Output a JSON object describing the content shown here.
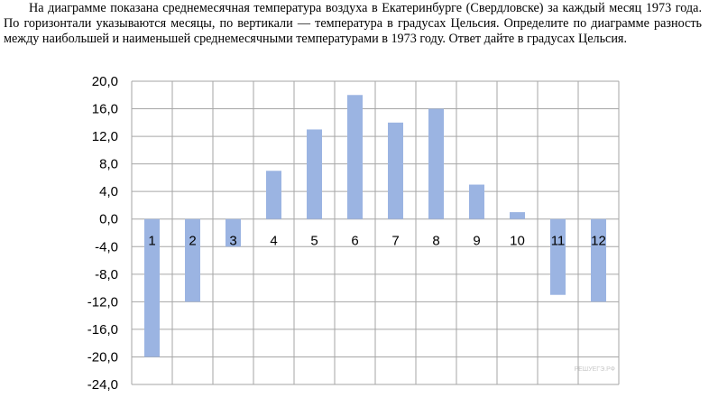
{
  "problem": {
    "text": "На диаграмме показана среднемесячная температура воздуха в Екатеринбурге (Свердловске) за каждый месяц 1973 года. По горизонтали указываются месяцы, по вертикали — температура в градусах Цельсия. Определите по диаграмме разность между наибольшей и наименьшей среднемесячными температурами в 1973 году. Ответ дайте в градусах Цельсия."
  },
  "watermark": "РЕШУЕГЭ.РФ",
  "chart_data": {
    "type": "bar",
    "title": "",
    "xlabel": "",
    "ylabel": "",
    "categories": [
      "1",
      "2",
      "3",
      "4",
      "5",
      "6",
      "7",
      "8",
      "9",
      "10",
      "11",
      "12"
    ],
    "values": [
      -20,
      -12,
      -4,
      7,
      13,
      18,
      14,
      16,
      5,
      1,
      -11,
      -12
    ],
    "ylim": [
      -24,
      20
    ],
    "yticks": [
      "20,0",
      "16,0",
      "12,0",
      "8,0",
      "4,0",
      "0,0",
      "-4,0",
      "-8,0",
      "-12,0",
      "-16,0",
      "-20,0",
      "-24,0"
    ],
    "grid": true,
    "legend": "none",
    "bar_color": "#9bb4e2",
    "grid_color": "#a6a6a6"
  }
}
